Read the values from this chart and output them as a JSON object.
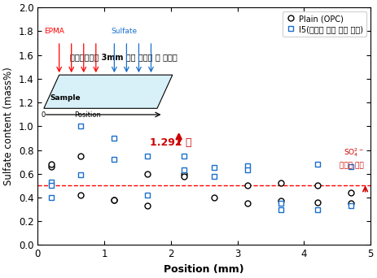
{
  "plain_x": [
    0.2,
    0.2,
    0.65,
    0.65,
    1.15,
    1.15,
    1.65,
    1.65,
    2.2,
    2.2,
    2.65,
    3.15,
    3.15,
    3.65,
    3.65,
    4.2,
    4.2,
    4.7,
    4.7
  ],
  "plain_y": [
    0.66,
    0.68,
    0.75,
    0.42,
    0.38,
    0.38,
    0.33,
    0.6,
    0.6,
    0.58,
    0.4,
    0.5,
    0.35,
    0.52,
    0.37,
    0.5,
    0.36,
    0.44,
    0.35
  ],
  "i5_x": [
    0.2,
    0.2,
    0.2,
    0.65,
    0.65,
    1.15,
    1.15,
    1.65,
    1.65,
    2.2,
    2.2,
    2.65,
    2.65,
    3.15,
    3.15,
    3.65,
    3.65,
    4.2,
    4.2,
    4.7,
    4.7
  ],
  "i5_y": [
    0.53,
    0.5,
    0.4,
    1.0,
    0.59,
    0.9,
    0.72,
    0.75,
    0.42,
    0.75,
    0.63,
    0.65,
    0.58,
    0.67,
    0.63,
    0.35,
    0.3,
    0.68,
    0.3,
    0.66,
    0.33
  ],
  "hline_y": 0.5,
  "xlim": [
    0,
    5
  ],
  "ylim": [
    0.0,
    2.0
  ],
  "xlabel": "Position (mm)",
  "ylabel": "Sulfate content (mass%)",
  "legend1_label": "Plain (OPC)",
  "legend2_label": "I5(음이온 교환 수지 치환)",
  "annotation_text": "1.292 배",
  "inset_title1": "EPMA",
  "inset_title2": "Sulfate",
  "inset_sample": "Sample",
  "inset_position": "Position",
  "bold_text": "표면으로부터 3mm 이상 깊이의 황 함유량",
  "so4_line1": "SO",
  "so4_line2": "고정량 비교",
  "yticks": [
    0.0,
    0.2,
    0.4,
    0.6,
    0.8,
    1.0,
    1.2,
    1.4,
    1.6,
    1.8,
    2.0
  ],
  "xticks": [
    0,
    1,
    2,
    3,
    4,
    5
  ]
}
